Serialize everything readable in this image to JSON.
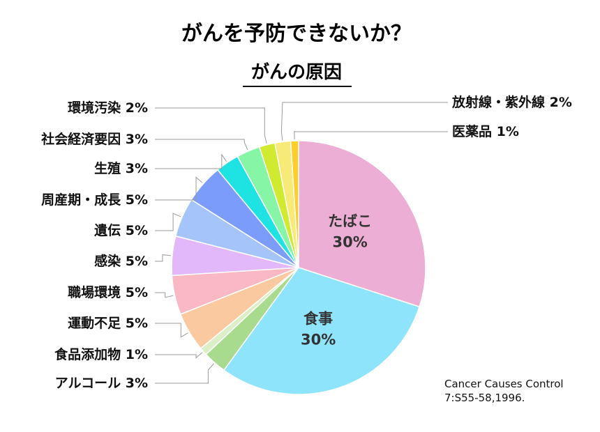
{
  "chart_data": {
    "type": "pie",
    "title": "がんを予防できないか？",
    "subtitle": "がんの原因",
    "slices": [
      {
        "label": "たばこ",
        "pct_text": "30%",
        "value": 30,
        "color": "#ECAED5",
        "display": "inside"
      },
      {
        "label": "食事",
        "pct_text": "30%",
        "value": 30,
        "color": "#8DE4FB",
        "display": "inside"
      },
      {
        "label": "アルコール",
        "pct_text": "3%",
        "value": 3,
        "color": "#A8DB8E",
        "display": "left"
      },
      {
        "label": "食品添加物",
        "pct_text": "1%",
        "value": 1,
        "color": "#DDEFC6",
        "display": "left"
      },
      {
        "label": "運動不足",
        "pct_text": "5%",
        "value": 5,
        "color": "#FBC99F",
        "display": "left"
      },
      {
        "label": "職場環境",
        "pct_text": "5%",
        "value": 5,
        "color": "#FAB8C5",
        "display": "left"
      },
      {
        "label": "感染",
        "pct_text": "5%",
        "value": 5,
        "color": "#E3B8FB",
        "display": "left"
      },
      {
        "label": "遺伝",
        "pct_text": "5%",
        "value": 5,
        "color": "#A5C4FA",
        "display": "left"
      },
      {
        "label": "周産期・成長",
        "pct_text": "5%",
        "value": 5,
        "color": "#7B9CFB",
        "display": "left"
      },
      {
        "label": "生殖",
        "pct_text": "3%",
        "value": 3,
        "color": "#1FE3E3",
        "display": "left"
      },
      {
        "label": "社会経済要因",
        "pct_text": "3%",
        "value": 3,
        "color": "#86F5A6",
        "display": "left"
      },
      {
        "label": "環境汚染",
        "pct_text": "2%",
        "value": 2,
        "color": "#CFEA2F",
        "display": "left"
      },
      {
        "label": "放射線・紫外線",
        "pct_text": "2%",
        "value": 2,
        "color": "#F8EA76",
        "display": "right"
      },
      {
        "label": "医薬品",
        "pct_text": "1%",
        "value": 1,
        "color": "#FFCE2B",
        "display": "right"
      }
    ],
    "source": [
      "Cancer Causes Control",
      "7:S55-58,1996."
    ]
  }
}
